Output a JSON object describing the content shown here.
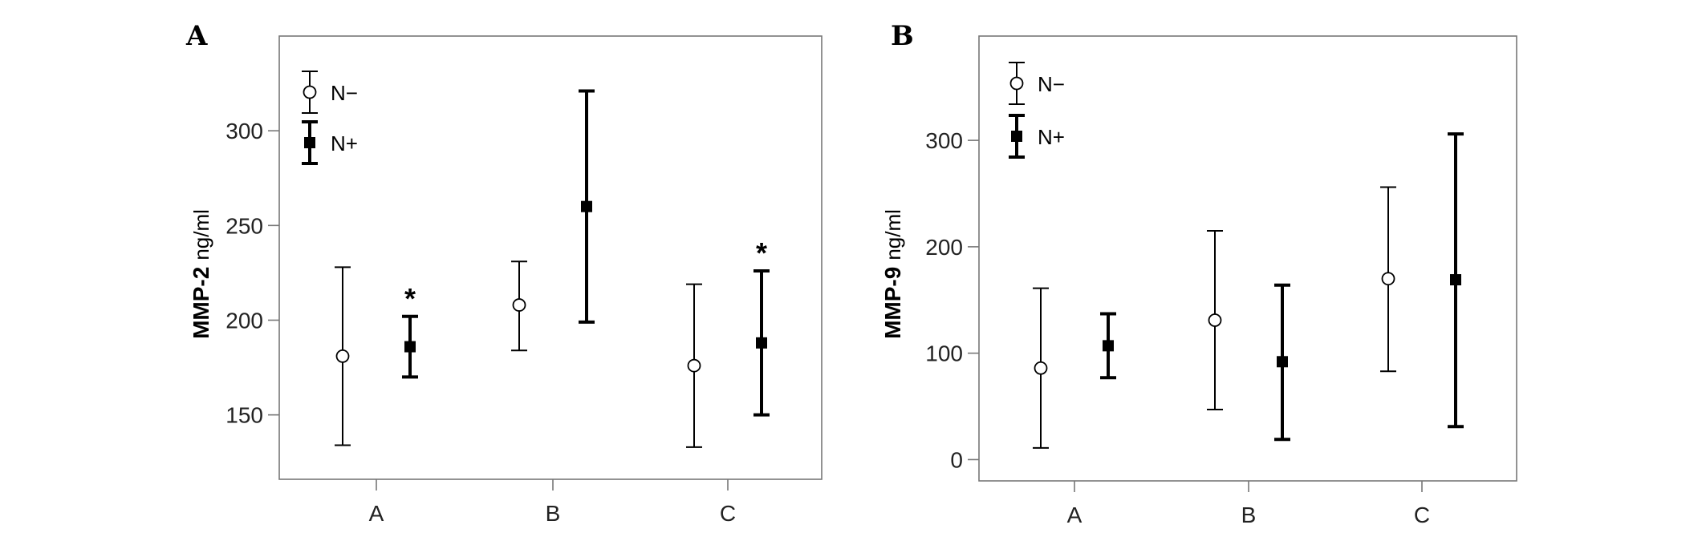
{
  "chart_data": [
    {
      "type": "errorbar",
      "panel": "A",
      "ylabel_main": "MMP-2",
      "ylabel_unit": "ng/ml",
      "categories": [
        "A",
        "B",
        "C"
      ],
      "yticks": [
        150,
        200,
        250,
        300
      ],
      "ylim": [
        116,
        350
      ],
      "series": [
        {
          "name": "N−",
          "marker": "open-circle",
          "mean": [
            181,
            208,
            176
          ],
          "lower": [
            134,
            184,
            133
          ],
          "upper": [
            228,
            231,
            219
          ]
        },
        {
          "name": "N+",
          "marker": "filled-square",
          "mean": [
            186,
            260,
            188
          ],
          "lower": [
            170,
            199,
            150
          ],
          "upper": [
            202,
            321,
            226
          ]
        }
      ],
      "annotations": [
        {
          "text": "*",
          "category": "A",
          "series": "N+"
        },
        {
          "text": "*",
          "category": "C",
          "series": "N+"
        }
      ]
    },
    {
      "type": "errorbar",
      "panel": "B",
      "ylabel_main": "MMP-9",
      "ylabel_unit": "ng/ml",
      "categories": [
        "A",
        "B",
        "C"
      ],
      "yticks": [
        0,
        100,
        200,
        300
      ],
      "ylim": [
        -20,
        398
      ],
      "series": [
        {
          "name": "N−",
          "marker": "open-circle",
          "mean": [
            86,
            131,
            170
          ],
          "lower": [
            11,
            47,
            83
          ],
          "upper": [
            161,
            215,
            256
          ]
        },
        {
          "name": "N+",
          "marker": "filled-square",
          "mean": [
            107,
            92,
            169
          ],
          "lower": [
            77,
            19,
            31
          ],
          "upper": [
            137,
            164,
            306
          ]
        }
      ],
      "annotations": []
    }
  ]
}
